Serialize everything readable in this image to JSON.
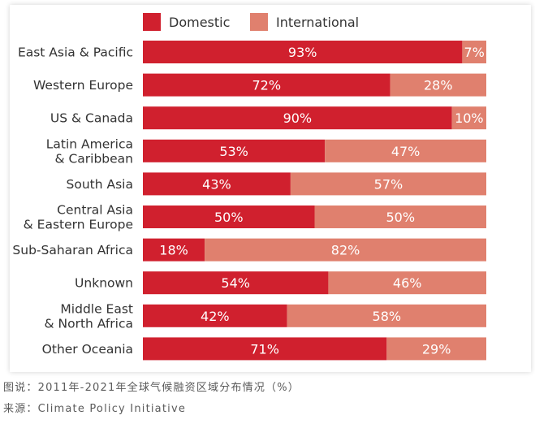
{
  "chart_data": {
    "type": "bar",
    "stacked": true,
    "orientation": "horizontal",
    "categories": [
      "East Asia & Pacific",
      "Western Europe",
      "US & Canada",
      "Latin America & Caribbean",
      "South Asia",
      "Central Asia & Eastern Europe",
      "Sub-Saharan Africa",
      "Unknown",
      "Middle East & North Africa",
      "Other Oceania"
    ],
    "category_lines": [
      [
        "East Asia & Pacific"
      ],
      [
        "Western Europe"
      ],
      [
        "US & Canada"
      ],
      [
        "Latin America",
        "& Caribbean"
      ],
      [
        "South Asia"
      ],
      [
        "Central Asia",
        "& Eastern Europe"
      ],
      [
        "Sub-Saharan Africa"
      ],
      [
        "Unknown"
      ],
      [
        "Middle East",
        "& North Africa"
      ],
      [
        "Other Oceania"
      ]
    ],
    "series": [
      {
        "name": "Domestic",
        "color": "#d0202e",
        "values": [
          93,
          72,
          90,
          53,
          43,
          50,
          18,
          54,
          42,
          71
        ]
      },
      {
        "name": "International",
        "color": "#e0806e",
        "values": [
          7,
          28,
          10,
          47,
          57,
          50,
          82,
          46,
          58,
          29
        ]
      }
    ],
    "value_suffix": "%",
    "xlim": [
      0,
      100
    ],
    "legend_position": "top",
    "grid": false
  },
  "captions": {
    "line1": "图说：2011年-2021年全球气候融资区域分布情况（%）",
    "line2": "来源：Climate Policy Initiative"
  }
}
